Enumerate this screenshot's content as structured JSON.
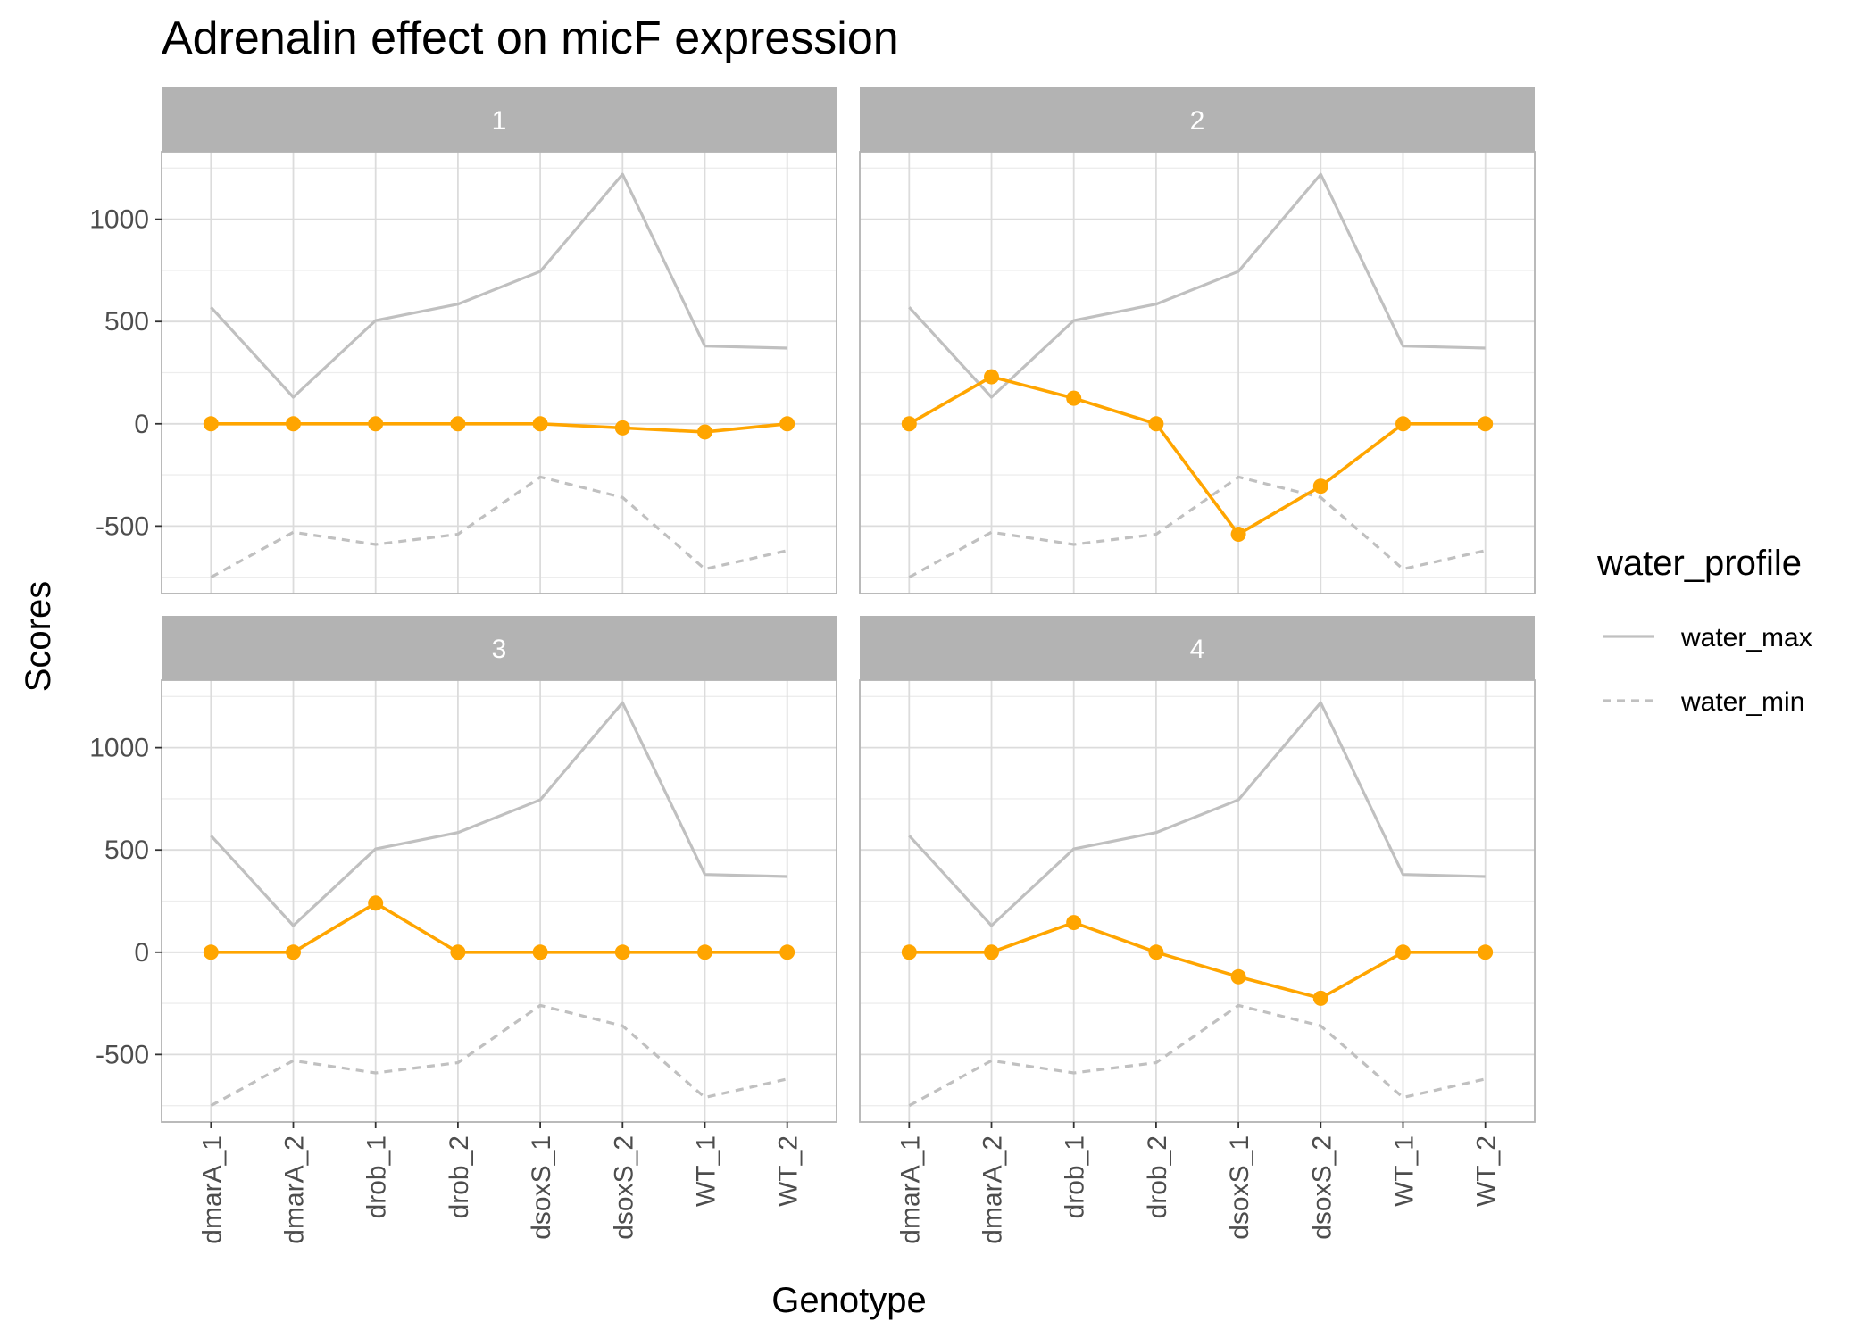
{
  "chart_data": {
    "type": "line",
    "title": "Adrenalin effect on micF expression",
    "xlabel": "Genotype",
    "ylabel": "Scores",
    "categories": [
      "dmarA_1",
      "dmarA_2",
      "drob_1",
      "drob_2",
      "dsoxS_1",
      "dsoxS_2",
      "WT_1",
      "WT_2"
    ],
    "ylim": [
      -830,
      1330
    ],
    "yticks": [
      -500,
      0,
      500,
      1000
    ],
    "grid": true,
    "facets": [
      {
        "label": "1",
        "series": [
          {
            "values": [
              0,
              0,
              0,
              0,
              0,
              -20,
              -40,
              0
            ],
            "color": "#FFA500"
          },
          {
            "name": "water_max",
            "values": [
              570,
              130,
              505,
              585,
              745,
              1220,
              380,
              370
            ]
          },
          {
            "name": "water_min",
            "values": [
              -750,
              -530,
              -590,
              -540,
              -260,
              -360,
              -710,
              -620
            ]
          }
        ]
      },
      {
        "label": "2",
        "series": [
          {
            "values": [
              0,
              230,
              125,
              0,
              -540,
              -305,
              0,
              0
            ],
            "color": "#FFA500"
          },
          {
            "name": "water_max",
            "values": [
              570,
              130,
              505,
              585,
              745,
              1220,
              380,
              370
            ]
          },
          {
            "name": "water_min",
            "values": [
              -750,
              -530,
              -590,
              -540,
              -260,
              -360,
              -710,
              -620
            ]
          }
        ]
      },
      {
        "label": "3",
        "series": [
          {
            "values": [
              0,
              0,
              240,
              0,
              0,
              0,
              0,
              0
            ],
            "color": "#FFA500"
          },
          {
            "name": "water_max",
            "values": [
              570,
              130,
              505,
              585,
              745,
              1220,
              380,
              370
            ]
          },
          {
            "name": "water_min",
            "values": [
              -750,
              -530,
              -590,
              -540,
              -260,
              -360,
              -710,
              -620
            ]
          }
        ]
      },
      {
        "label": "4",
        "series": [
          {
            "values": [
              0,
              0,
              145,
              0,
              -120,
              -225,
              0,
              0
            ],
            "color": "#FFA500"
          },
          {
            "name": "water_max",
            "values": [
              570,
              130,
              505,
              585,
              745,
              1220,
              380,
              370
            ]
          },
          {
            "name": "water_min",
            "values": [
              -750,
              -530,
              -590,
              -540,
              -260,
              -360,
              -710,
              -620
            ]
          }
        ]
      }
    ],
    "legend": {
      "title": "water_profile",
      "position": "right",
      "items": [
        {
          "label": "water_max",
          "style": "solid"
        },
        {
          "label": "water_min",
          "style": "dashed"
        }
      ]
    },
    "colors": {
      "highlight": "#FFA500",
      "reference": "#C0C0C0",
      "strip": "#B3B3B3",
      "grid_major": "#DCDCDC",
      "grid_minor": "#EDEDED",
      "panel_border": "#B3B3B3"
    }
  }
}
